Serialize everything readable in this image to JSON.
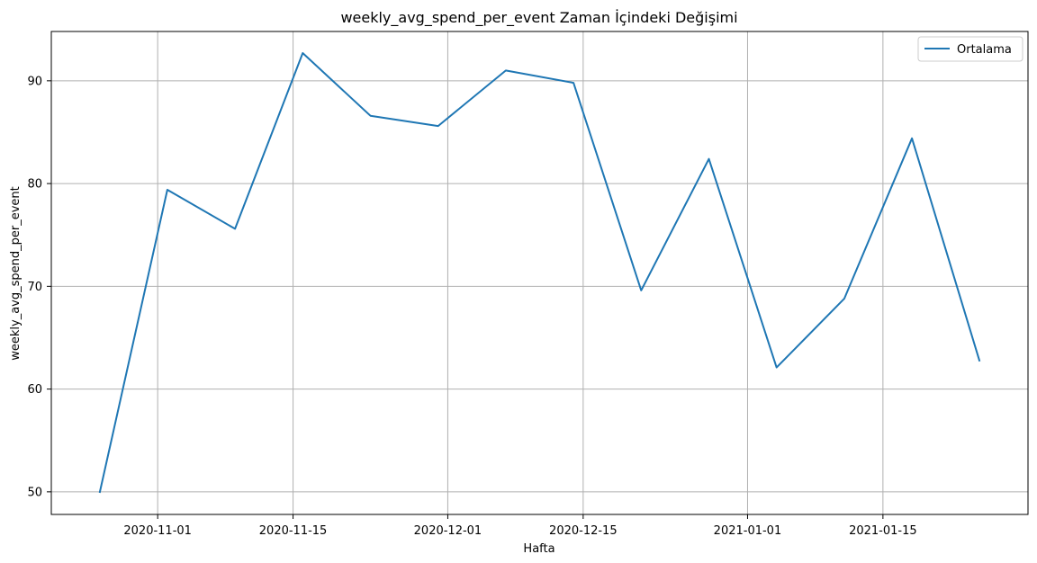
{
  "chart_data": {
    "type": "line",
    "title": "weekly_avg_spend_per_event Zaman İçindeki Değişimi",
    "xlabel": "Hafta",
    "ylabel": "weekly_avg_spend_per_event",
    "x_type": "date",
    "xlim": [
      "2020-10-21",
      "2021-01-30"
    ],
    "ylim": [
      47.8,
      94.8
    ],
    "x_ticks": [
      "2020-11-01",
      "2020-11-15",
      "2020-12-01",
      "2020-12-15",
      "2021-01-01",
      "2021-01-15"
    ],
    "y_ticks": [
      50,
      60,
      70,
      80,
      90
    ],
    "grid": true,
    "legend_position": "top-right",
    "colors": {
      "line": "#1f77b4",
      "grid": "#b0b0b0",
      "axes": "#000000"
    },
    "series": [
      {
        "name": "Ortalama",
        "x": [
          "2020-10-26",
          "2020-11-02",
          "2020-11-09",
          "2020-11-16",
          "2020-11-23",
          "2020-11-30",
          "2020-12-07",
          "2020-12-14",
          "2020-12-21",
          "2020-12-28",
          "2021-01-04",
          "2021-01-11",
          "2021-01-18",
          "2021-01-25"
        ],
        "y": [
          49.9,
          79.4,
          75.6,
          92.7,
          86.6,
          85.6,
          91.0,
          89.8,
          69.6,
          82.4,
          62.1,
          68.8,
          84.4,
          62.7
        ]
      }
    ]
  }
}
